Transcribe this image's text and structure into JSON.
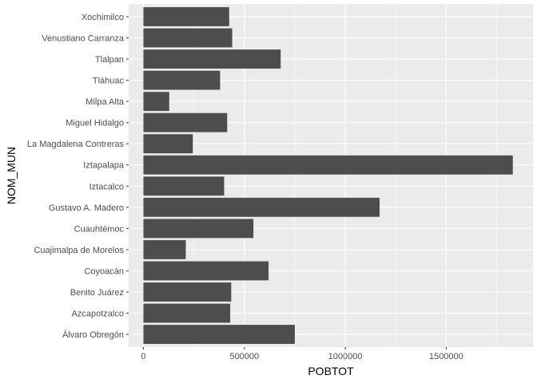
{
  "chart_data": {
    "type": "bar",
    "orientation": "horizontal",
    "xlabel": "POBTOT",
    "ylabel": "NOM_MUN",
    "xlim": [
      -73000,
      1930000
    ],
    "x_ticks": [
      0,
      500000,
      1000000,
      1500000
    ],
    "x_tick_labels": [
      "0",
      "500000",
      "1000000",
      "1500000"
    ],
    "x_minor_ticks": [
      250000,
      750000,
      1250000,
      1750000
    ],
    "grid": true,
    "bar_color": "#4d4d4d",
    "panel_color": "#ebebeb",
    "categories": [
      "Álvaro Obregón",
      "Azcapotzalco",
      "Benito Juárez",
      "Coyoacán",
      "Cuajimalpa de Morelos",
      "Cuauhtémoc",
      "Gustavo A. Madero",
      "Iztacalco",
      "Iztapalapa",
      "La Magdalena Contreras",
      "Miguel Hidalgo",
      "Milpa Alta",
      "Tláhuac",
      "Tlalpan",
      "Venustiano Carranza",
      "Xochimilco"
    ],
    "values": [
      750000,
      430000,
      435000,
      620000,
      210000,
      545000,
      1170000,
      400000,
      1830000,
      245000,
      415000,
      128000,
      380000,
      680000,
      440000,
      425000
    ]
  }
}
